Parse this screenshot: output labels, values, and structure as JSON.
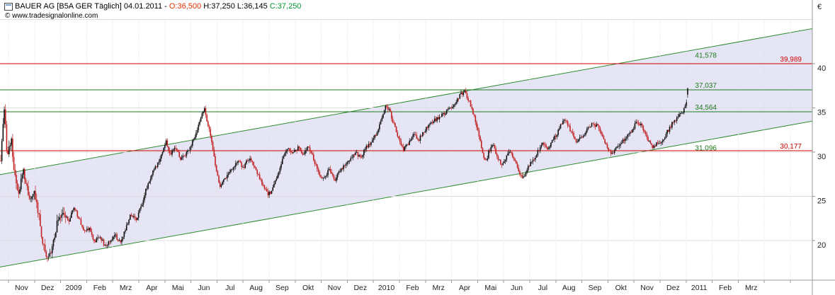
{
  "header": {
    "title_prefix": "BAUER AG [B5A GER  Täglich] 04.01.2011 - ",
    "open_label": "O:36,500",
    "high_low_label": " H:37,250 L:36,145 ",
    "close_label": "C:37,250",
    "copyright": "© www.tradesignalonline.com"
  },
  "colors": {
    "up_line_green": "#1e7a1e",
    "resistance_red": "#d40000",
    "channel_fill": "#dcdcf1",
    "channel_line": "#2e8b2e",
    "grid": "#dddddd",
    "axis": "#999999"
  },
  "chart_data": {
    "type": "candlestick",
    "instrument": "BAUER AG",
    "symbol": "B5A GER",
    "period": "Täglich",
    "last_date": "04.01.2011",
    "ohlc_last": {
      "open": 36.5,
      "high": 37.25,
      "low": 36.145,
      "close": 37.25
    },
    "currency_symbol": "€",
    "ylim": [
      15.5,
      45
    ],
    "y_ticks": [
      40,
      35,
      30,
      25,
      20
    ],
    "y_grid": [
      20,
      25,
      30,
      35,
      40,
      45
    ],
    "x_labels": [
      "Nov",
      "Dez",
      "2009",
      "Feb",
      "Mrz",
      "Apr",
      "Mai",
      "Jun",
      "Jul",
      "Aug",
      "Sep",
      "Okt",
      "Nov",
      "Dez",
      "2010",
      "Feb",
      "Mrz",
      "Apr",
      "Mai",
      "Jun",
      "Jul",
      "Aug",
      "Sep",
      "Okt",
      "Nov",
      "Dez",
      "2011",
      "Feb",
      "Mrz"
    ],
    "levels": [
      {
        "price": 39.989,
        "label": "39,989",
        "color": "#d40000",
        "line": true,
        "label_zone": "axis",
        "label_side": "above"
      },
      {
        "price": 30.177,
        "label": "30,177",
        "color": "#d40000",
        "line": true,
        "label_zone": "axis",
        "label_side": "above"
      },
      {
        "price": 37.037,
        "label": "37,037",
        "color": "#1e7a1e",
        "line": true,
        "label_zone": "inner",
        "label_side": "above"
      },
      {
        "price": 34.564,
        "label": "34,564",
        "color": "#1e7a1e",
        "line": true,
        "label_zone": "inner",
        "label_side": "above"
      },
      {
        "price": 41.578,
        "label": "41,578",
        "color": "#1e7a1e",
        "line": false,
        "label_zone": "inner",
        "label_side": "below"
      },
      {
        "price": 31.096,
        "label": "31,096",
        "color": "#1e7a1e",
        "line": false,
        "label_zone": "inner",
        "label_side": "below"
      }
    ],
    "trend_channel": {
      "upper_price_left": 27.45,
      "upper_price_right": 43.96,
      "lower_price_left": 17.0,
      "lower_price_right": 33.5,
      "upper_value_label": "41,578",
      "lower_value_label": "31,096"
    },
    "candle_colors": {
      "up": "#101010",
      "down": "#c22020"
    },
    "price_anchors": [
      [
        -0.3,
        29.0
      ],
      [
        -0.22,
        32.5
      ],
      [
        -0.15,
        34.8
      ],
      [
        -0.05,
        29.5
      ],
      [
        0.1,
        31.5
      ],
      [
        0.25,
        27.0
      ],
      [
        0.4,
        24.8
      ],
      [
        0.55,
        28.3
      ],
      [
        0.7,
        26.0
      ],
      [
        0.85,
        24.5
      ],
      [
        1.0,
        25.5
      ],
      [
        1.15,
        23.0
      ],
      [
        1.3,
        20.0
      ],
      [
        1.45,
        17.8
      ],
      [
        1.6,
        18.5
      ],
      [
        1.75,
        20.5
      ],
      [
        1.9,
        22.3
      ],
      [
        2.1,
        23.5
      ],
      [
        2.3,
        22.0
      ],
      [
        2.5,
        23.8
      ],
      [
        2.7,
        22.5
      ],
      [
        2.9,
        21.0
      ],
      [
        3.1,
        21.5
      ],
      [
        3.3,
        19.8
      ],
      [
        3.5,
        20.6
      ],
      [
        3.7,
        19.3
      ],
      [
        3.9,
        20.0
      ],
      [
        4.1,
        20.6
      ],
      [
        4.3,
        19.6
      ],
      [
        4.5,
        21.5
      ],
      [
        4.7,
        23.0
      ],
      [
        4.9,
        22.4
      ],
      [
        5.1,
        24.0
      ],
      [
        5.3,
        26.0
      ],
      [
        5.5,
        27.5
      ],
      [
        5.7,
        28.6
      ],
      [
        5.9,
        30.0
      ],
      [
        6.05,
        31.2
      ],
      [
        6.2,
        29.6
      ],
      [
        6.4,
        30.6
      ],
      [
        6.6,
        29.2
      ],
      [
        6.8,
        29.8
      ],
      [
        7.0,
        30.8
      ],
      [
        7.2,
        32.0
      ],
      [
        7.35,
        33.6
      ],
      [
        7.5,
        35.0
      ],
      [
        7.65,
        33.2
      ],
      [
        7.8,
        31.0
      ],
      [
        7.95,
        28.4
      ],
      [
        8.1,
        26.2
      ],
      [
        8.25,
        26.8
      ],
      [
        8.4,
        27.4
      ],
      [
        8.6,
        28.3
      ],
      [
        8.8,
        29.0
      ],
      [
        9.0,
        28.2
      ],
      [
        9.2,
        29.3
      ],
      [
        9.4,
        28.6
      ],
      [
        9.6,
        27.2
      ],
      [
        9.8,
        26.0
      ],
      [
        9.95,
        25.2
      ],
      [
        10.1,
        25.6
      ],
      [
        10.3,
        27.2
      ],
      [
        10.5,
        29.0
      ],
      [
        10.7,
        30.4
      ],
      [
        10.9,
        29.8
      ],
      [
        11.1,
        30.5
      ],
      [
        11.3,
        29.6
      ],
      [
        11.5,
        30.8
      ],
      [
        11.7,
        29.2
      ],
      [
        11.9,
        27.6
      ],
      [
        12.1,
        27.0
      ],
      [
        12.3,
        28.0
      ],
      [
        12.5,
        26.8
      ],
      [
        12.7,
        27.8
      ],
      [
        12.9,
        28.6
      ],
      [
        13.1,
        29.2
      ],
      [
        13.3,
        30.0
      ],
      [
        13.5,
        29.4
      ],
      [
        13.7,
        30.4
      ],
      [
        13.9,
        31.0
      ],
      [
        14.1,
        32.0
      ],
      [
        14.3,
        33.6
      ],
      [
        14.5,
        35.4
      ],
      [
        14.65,
        34.4
      ],
      [
        14.8,
        33.0
      ],
      [
        15.0,
        31.2
      ],
      [
        15.15,
        30.2
      ],
      [
        15.35,
        31.0
      ],
      [
        15.55,
        32.0
      ],
      [
        15.75,
        31.4
      ],
      [
        15.95,
        32.4
      ],
      [
        16.15,
        33.0
      ],
      [
        16.35,
        33.6
      ],
      [
        16.55,
        34.0
      ],
      [
        16.75,
        34.4
      ],
      [
        16.95,
        35.0
      ],
      [
        17.15,
        35.6
      ],
      [
        17.3,
        36.4
      ],
      [
        17.5,
        36.8
      ],
      [
        17.7,
        35.6
      ],
      [
        17.85,
        34.2
      ],
      [
        18.0,
        32.6
      ],
      [
        18.15,
        30.6
      ],
      [
        18.3,
        28.8
      ],
      [
        18.45,
        30.2
      ],
      [
        18.6,
        30.8
      ],
      [
        18.75,
        29.6
      ],
      [
        18.9,
        28.6
      ],
      [
        19.05,
        29.2
      ],
      [
        19.2,
        30.2
      ],
      [
        19.4,
        29.2
      ],
      [
        19.6,
        27.6
      ],
      [
        19.75,
        27.0
      ],
      [
        19.9,
        28.2
      ],
      [
        20.1,
        29.0
      ],
      [
        20.3,
        30.0
      ],
      [
        20.5,
        31.0
      ],
      [
        20.7,
        30.4
      ],
      [
        20.9,
        31.4
      ],
      [
        21.1,
        32.4
      ],
      [
        21.3,
        33.8
      ],
      [
        21.45,
        33.2
      ],
      [
        21.6,
        32.2
      ],
      [
        21.8,
        31.2
      ],
      [
        22.0,
        31.6
      ],
      [
        22.2,
        32.6
      ],
      [
        22.4,
        33.2
      ],
      [
        22.6,
        33.0
      ],
      [
        22.8,
        31.6
      ],
      [
        23.0,
        30.4
      ],
      [
        23.15,
        29.8
      ],
      [
        23.3,
        30.4
      ],
      [
        23.5,
        31.0
      ],
      [
        23.7,
        31.8
      ],
      [
        23.9,
        32.4
      ],
      [
        24.1,
        33.4
      ],
      [
        24.3,
        33.0
      ],
      [
        24.5,
        31.6
      ],
      [
        24.7,
        30.6
      ],
      [
        24.9,
        31.0
      ],
      [
        25.1,
        31.4
      ],
      [
        25.3,
        32.4
      ],
      [
        25.5,
        33.4
      ],
      [
        25.7,
        34.0
      ],
      [
        25.9,
        34.6
      ],
      [
        26.0,
        35.4
      ],
      [
        26.06,
        37.25
      ]
    ]
  }
}
